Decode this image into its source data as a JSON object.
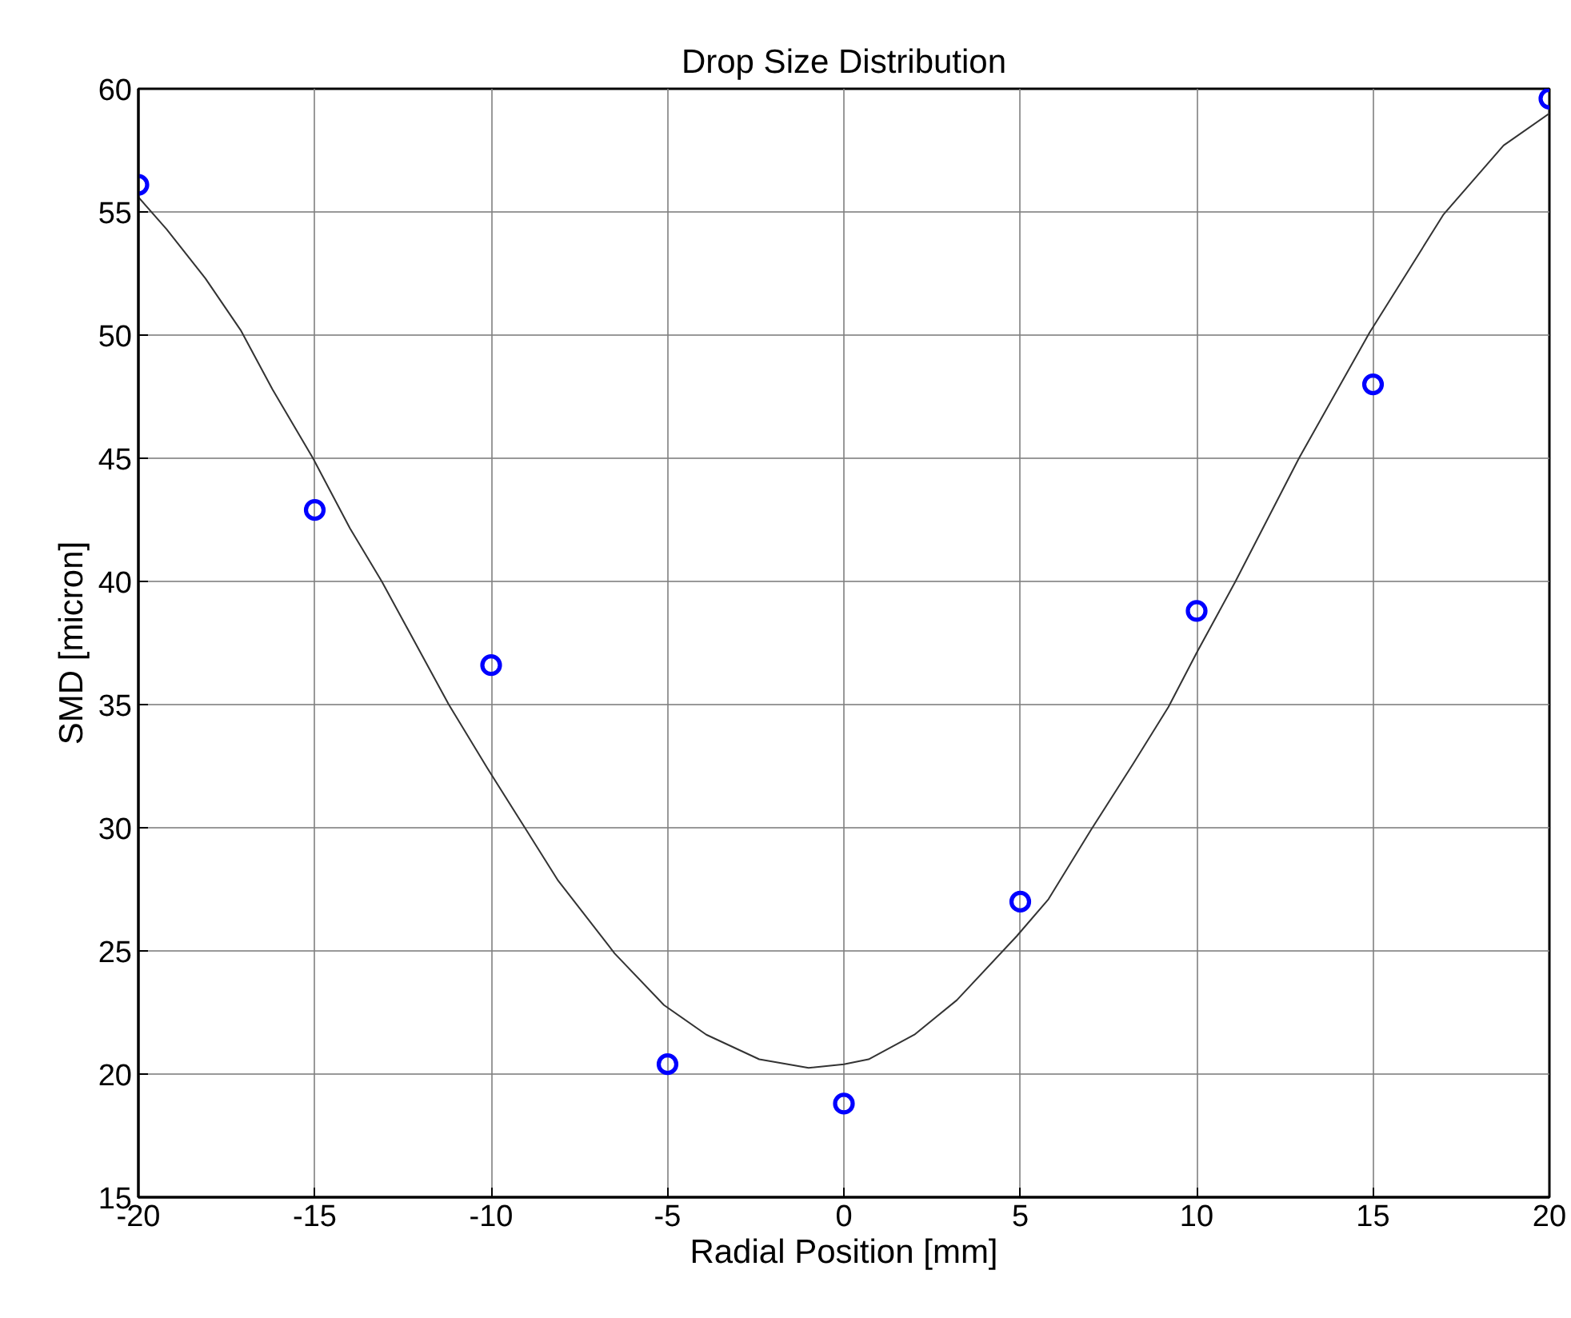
{
  "chart_data": {
    "type": "scatter",
    "title": "Drop Size Distribution",
    "xlabel": "Radial Position [mm]",
    "ylabel": "SMD [micron]",
    "xlim": [
      -20,
      20
    ],
    "xticks": [
      -20,
      -15,
      -10,
      -5,
      0,
      5,
      10,
      15,
      20
    ],
    "ylim": [
      15,
      60
    ],
    "yticks": [
      15,
      20,
      25,
      30,
      35,
      40,
      45,
      50,
      55,
      60
    ],
    "grid": true,
    "marker": "circle",
    "series": [
      {
        "color": "#0000ff",
        "x": [
          -20,
          -15,
          -10,
          -5,
          0,
          5,
          10,
          15,
          20
        ],
        "values": [
          56.1,
          42.9,
          36.6,
          20.4,
          18.8,
          27.0,
          38.8,
          48.0,
          59.6
        ]
      },
      {
        "type": "line",
        "color": "#333333",
        "marker": "none",
        "line_style": "solid",
        "x": [
          -20,
          -19.2,
          -18.1,
          -17.1,
          -16.2,
          -15.05,
          -14.0,
          -13.1,
          -11.2,
          -10.1,
          -9.0,
          -8.1,
          -6.5,
          -5.1,
          -3.9,
          -2.4,
          -1.0,
          0,
          0.7,
          2.0,
          3.2,
          4.9,
          5.8,
          7.0,
          8.2,
          9.2,
          10.0,
          11.1,
          12.9,
          14.9,
          17.0,
          18.7,
          20
        ],
        "values": [
          55.6,
          54.3,
          52.3,
          50.2,
          47.8,
          45.0,
          42.15,
          40.0,
          35.0,
          32.4,
          29.9,
          27.85,
          24.9,
          22.8,
          21.6,
          20.6,
          20.25,
          20.4,
          20.6,
          21.6,
          23.0,
          25.6,
          27.1,
          29.9,
          32.6,
          34.9,
          37.1,
          40.0,
          45.0,
          50.1,
          54.9,
          57.7,
          59.0
        ]
      }
    ]
  }
}
